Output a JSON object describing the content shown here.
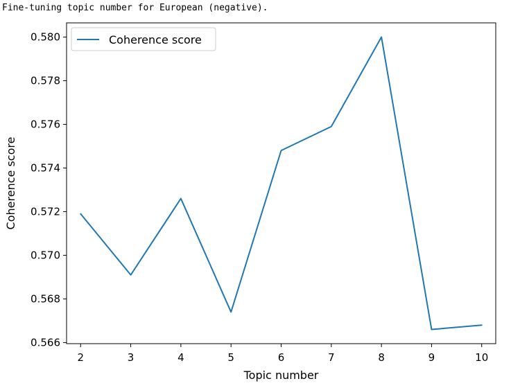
{
  "output_caption": "Fine-tuning topic number for European (negative).",
  "chart_data": {
    "type": "line",
    "title": "",
    "xlabel": "Topic number",
    "ylabel": "Coherence score",
    "x": [
      2,
      3,
      4,
      5,
      6,
      7,
      8,
      9,
      10
    ],
    "series": [
      {
        "name": "Coherence score",
        "color": "#1f77b4",
        "values": [
          0.5719,
          0.5691,
          0.5726,
          0.5674,
          0.5748,
          0.5759,
          0.58,
          0.5666,
          0.5668
        ]
      }
    ],
    "xlim": [
      1.72,
      10.28
    ],
    "ylim": [
      0.56595,
      0.58065
    ],
    "xticks": [
      2,
      3,
      4,
      5,
      6,
      7,
      8,
      9,
      10
    ],
    "xtick_labels": [
      "2",
      "3",
      "4",
      "5",
      "6",
      "7",
      "8",
      "9",
      "10"
    ],
    "yticks": [
      0.566,
      0.568,
      0.57,
      0.572,
      0.574,
      0.576,
      0.578,
      0.58
    ],
    "ytick_labels": [
      "0.566",
      "0.568",
      "0.570",
      "0.572",
      "0.574",
      "0.576",
      "0.578",
      "0.580"
    ],
    "grid": false,
    "legend_position": "top-left"
  }
}
